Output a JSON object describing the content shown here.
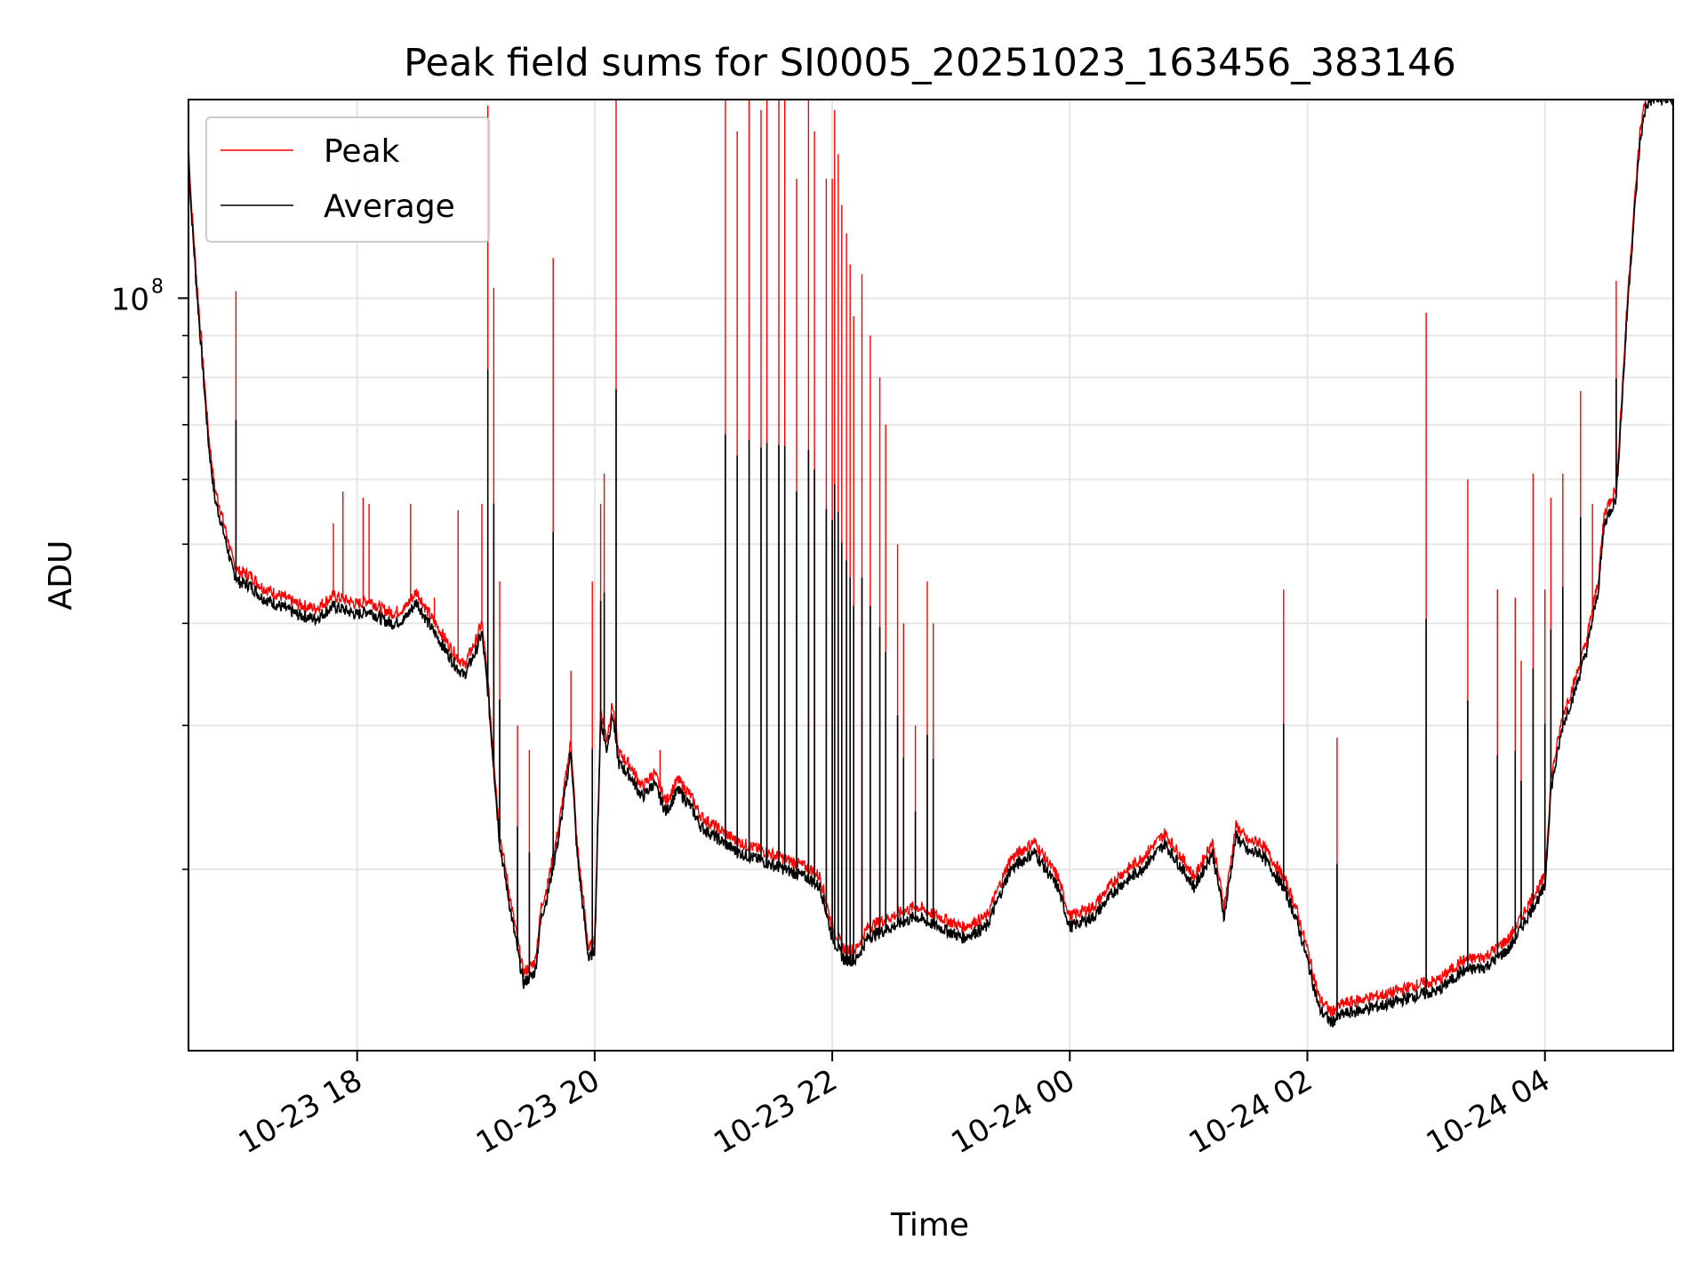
{
  "chart_data": {
    "type": "line",
    "title": "Peak field sums for SI0005_20251023_163456_383146",
    "xlabel": "Time",
    "ylabel": "ADU",
    "yscale": "log",
    "ylim": [
      12000000,
      175000000
    ],
    "xlim": [
      16.58,
      29.08
    ],
    "grid": true,
    "x_units": "hours since 10-23 00:00",
    "xticks": [
      {
        "value": 18,
        "label": "10-23 18"
      },
      {
        "value": 20,
        "label": "10-23 20"
      },
      {
        "value": 22,
        "label": "10-23 22"
      },
      {
        "value": 24,
        "label": "10-24 00"
      },
      {
        "value": 26,
        "label": "10-24 02"
      },
      {
        "value": 28,
        "label": "10-24 04"
      }
    ],
    "yticks_major": [
      {
        "value": 100000000,
        "base": "10",
        "exp": "8"
      }
    ],
    "yticks_minor": [
      20000000,
      30000000,
      40000000,
      50000000,
      60000000,
      70000000,
      80000000,
      90000000,
      200000000
    ],
    "legend": {
      "position": "top-left",
      "entries": [
        "Peak",
        "Average"
      ]
    },
    "colors": {
      "peak": "#ff0000",
      "average": "#000000",
      "grid": "#e6e6e6"
    },
    "series": [
      {
        "name": "Average",
        "x": [
          16.58,
          16.6,
          16.65,
          16.7,
          16.75,
          16.8,
          16.85,
          16.9,
          16.95,
          17.0,
          17.1,
          17.2,
          17.35,
          17.5,
          17.65,
          17.8,
          17.9,
          18.0,
          18.1,
          18.2,
          18.3,
          18.4,
          18.5,
          18.6,
          18.7,
          18.8,
          18.9,
          19.0,
          19.05,
          19.1,
          19.2,
          19.3,
          19.4,
          19.5,
          19.55,
          19.6,
          19.7,
          19.8,
          19.85,
          19.9,
          19.95,
          20.0,
          20.05,
          20.1,
          20.15,
          20.2,
          20.3,
          20.4,
          20.5,
          20.6,
          20.7,
          20.8,
          20.9,
          21.0,
          21.2,
          21.4,
          21.6,
          21.8,
          21.9,
          22.0,
          22.1,
          22.2,
          22.3,
          22.5,
          22.7,
          22.9,
          23.1,
          23.3,
          23.5,
          23.7,
          23.9,
          24.0,
          24.2,
          24.4,
          24.6,
          24.8,
          24.95,
          25.05,
          25.2,
          25.3,
          25.4,
          25.5,
          25.6,
          25.7,
          25.8,
          25.9,
          26.0,
          26.1,
          26.2,
          26.3,
          26.5,
          26.7,
          26.9,
          27.1,
          27.3,
          27.5,
          27.7,
          27.9,
          28.0,
          28.05,
          28.15,
          28.25,
          28.35,
          28.45,
          28.5,
          28.6,
          28.65,
          28.7,
          28.75,
          28.8,
          28.85,
          28.9,
          29.0,
          29.08
        ],
        "y": [
          150000000,
          130000000,
          102000000,
          82000000,
          66000000,
          57000000,
          53500000,
          50000000,
          46500000,
          45000000,
          44500000,
          43000000,
          42000000,
          41000000,
          40500000,
          42000000,
          41500000,
          41000000,
          41500000,
          40500000,
          40000000,
          40500000,
          42500000,
          40000000,
          38000000,
          36000000,
          34500000,
          37000000,
          39000000,
          33000000,
          21500000,
          17500000,
          14500000,
          15000000,
          17500000,
          18500000,
          22000000,
          28000000,
          21000000,
          18000000,
          15500000,
          16000000,
          30500000,
          28000000,
          31000000,
          27000000,
          26000000,
          24500000,
          25500000,
          23500000,
          25000000,
          24000000,
          22500000,
          22000000,
          21000000,
          20500000,
          20000000,
          19500000,
          19000000,
          16500000,
          15500000,
          15500000,
          16500000,
          17000000,
          17500000,
          17000000,
          16500000,
          17000000,
          20000000,
          21000000,
          19000000,
          17000000,
          17500000,
          19000000,
          20000000,
          21500000,
          20000000,
          19000000,
          21000000,
          17500000,
          22000000,
          21000000,
          21000000,
          20000000,
          19000000,
          17500000,
          15500000,
          13500000,
          13000000,
          13300000,
          13500000,
          13700000,
          14000000,
          14200000,
          15000000,
          15200000,
          16000000,
          18000000,
          19000000,
          25000000,
          30000000,
          33000000,
          37000000,
          44000000,
          53000000,
          57000000,
          75000000,
          100000000,
          125000000,
          155000000,
          172000000,
          175000000,
          175000000,
          175000000
        ]
      },
      {
        "name": "Peak",
        "baseline": "average x 1.03",
        "spikes_x": [
          16.98,
          17.15,
          17.8,
          17.88,
          18.05,
          18.1,
          18.45,
          18.65,
          18.85,
          19.05,
          19.1,
          19.15,
          19.2,
          19.35,
          19.45,
          19.65,
          19.8,
          19.98,
          20.05,
          20.08,
          20.18,
          20.55,
          21.1,
          21.2,
          21.3,
          21.4,
          21.45,
          21.55,
          21.6,
          21.7,
          21.8,
          21.85,
          21.95,
          22.0,
          22.02,
          22.05,
          22.08,
          22.12,
          22.15,
          22.18,
          22.25,
          22.32,
          22.4,
          22.45,
          22.55,
          22.6,
          22.7,
          22.8,
          22.85,
          25.8,
          26.25,
          27.0,
          27.35,
          27.6,
          27.75,
          27.8,
          27.9,
          28.0,
          28.05,
          28.15,
          28.3,
          28.4,
          28.6
        ],
        "spikes_y": [
          102000000,
          44000000,
          53000000,
          58000000,
          57000000,
          56000000,
          56000000,
          43000000,
          55000000,
          56000000,
          172000000,
          103000000,
          45000000,
          30000000,
          28000000,
          112000000,
          35000000,
          45000000,
          56000000,
          61000000,
          175000000,
          28000000,
          175000000,
          160000000,
          175000000,
          170000000,
          175000000,
          175000000,
          175000000,
          140000000,
          175000000,
          160000000,
          140000000,
          140000000,
          170000000,
          150000000,
          130000000,
          120000000,
          110000000,
          95000000,
          107000000,
          90000000,
          80000000,
          70000000,
          50000000,
          40000000,
          30000000,
          45000000,
          40000000,
          44000000,
          29000000,
          96000000,
          60000000,
          44000000,
          43000000,
          36000000,
          61000000,
          44000000,
          57000000,
          61000000,
          77000000,
          56000000,
          105000000
        ]
      }
    ]
  }
}
